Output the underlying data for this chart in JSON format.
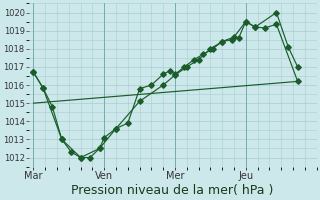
{
  "background_color": "#cde8eb",
  "grid_color": "#a8cdd1",
  "line_color": "#1a5c2a",
  "marker_color": "#1a5c2a",
  "x_ticks_pos": [
    0,
    3,
    6,
    9
  ],
  "x_tick_labels": [
    "Mar",
    "Ven",
    "Mer",
    "Jeu"
  ],
  "x_vlines": [
    0,
    3,
    6,
    9
  ],
  "series1_x": [
    0.0,
    0.4,
    0.8,
    1.2,
    1.6,
    2.0,
    2.4,
    2.8,
    3.0,
    3.5,
    4.0,
    4.5,
    5.0,
    5.5,
    5.8,
    6.0,
    6.4,
    6.8,
    7.2,
    7.6,
    8.0,
    8.4,
    8.7,
    9.0,
    9.4,
    9.8,
    10.3,
    11.2
  ],
  "series1_y": [
    1016.7,
    1015.85,
    1014.8,
    1013.0,
    1012.3,
    1012.0,
    1012.0,
    1012.5,
    1013.1,
    1013.6,
    1013.9,
    1015.8,
    1016.0,
    1016.6,
    1016.8,
    1016.6,
    1017.0,
    1017.4,
    1017.7,
    1018.0,
    1018.4,
    1018.5,
    1018.6,
    1019.5,
    1019.2,
    1019.15,
    1019.35,
    1016.2
  ],
  "series2_x": [
    0.0,
    0.4,
    1.2,
    2.0,
    2.8,
    3.5,
    4.5,
    5.5,
    6.0,
    6.5,
    7.0,
    7.5,
    8.0,
    8.5,
    9.0,
    9.4,
    10.3,
    10.8,
    11.2
  ],
  "series2_y": [
    1016.7,
    1015.85,
    1013.0,
    1012.0,
    1012.5,
    1013.6,
    1015.1,
    1016.0,
    1016.55,
    1017.0,
    1017.4,
    1018.0,
    1018.4,
    1018.65,
    1019.5,
    1019.2,
    1020.0,
    1018.1,
    1017.0
  ],
  "series3_x": [
    0.0,
    11.2
  ],
  "series3_y": [
    1015.0,
    1016.2
  ],
  "xlim": [
    -0.2,
    11.8
  ],
  "ylim": [
    1011.5,
    1020.5
  ],
  "y_ticks": [
    1012,
    1013,
    1014,
    1015,
    1016,
    1017,
    1018,
    1019,
    1020
  ],
  "xlabel": "Pression niveau de la mer( hPa )",
  "xlabel_fontsize": 9
}
